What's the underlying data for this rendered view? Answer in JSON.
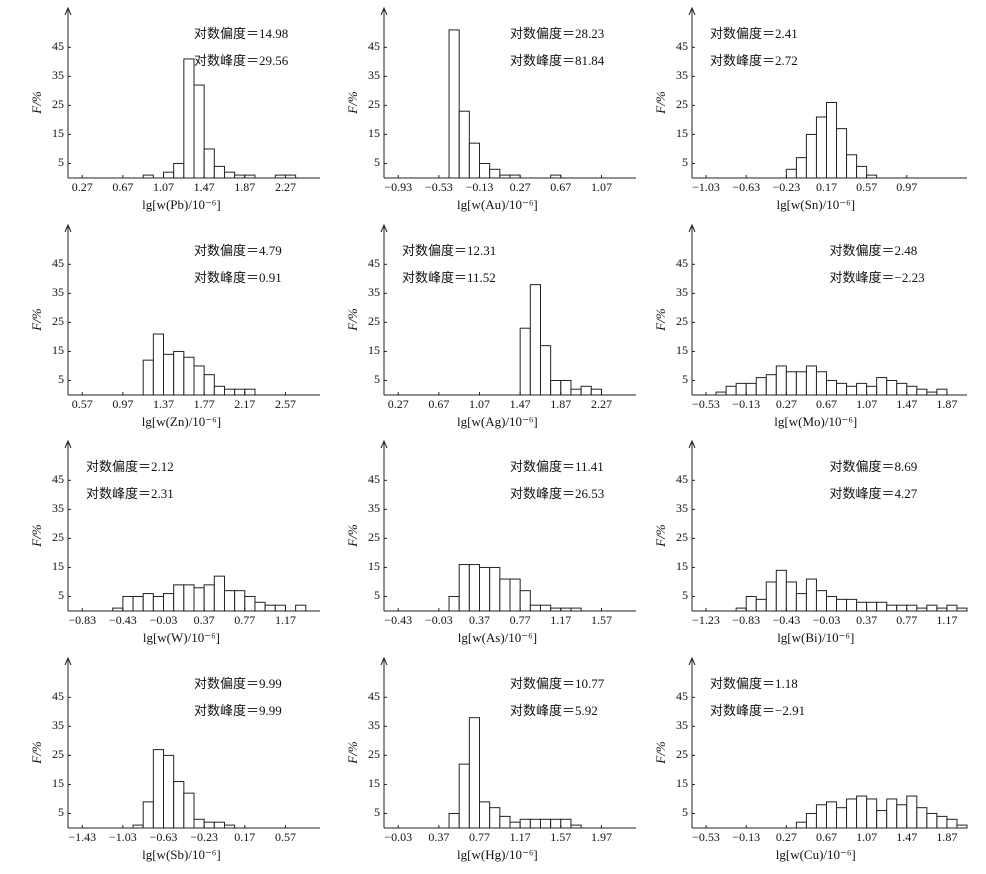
{
  "chart_data": [
    {
      "type": "histogram",
      "xlabel": "lg[w(Pb)/10⁻⁶]",
      "ylabel": "F/%",
      "annotations": [
        "对数偏度＝14.98",
        "对数峰度＝29.56"
      ],
      "bins": [
        0.87,
        0.97,
        1.07,
        1.17,
        1.27,
        1.37,
        1.47,
        1.57,
        1.67,
        1.77,
        1.87,
        1.97,
        2.07,
        2.17,
        2.27,
        2.37
      ],
      "values": [
        1,
        0,
        2,
        5,
        41,
        32,
        10,
        4,
        2,
        1,
        1,
        0,
        0,
        1,
        1
      ],
      "xlim": [
        0.13,
        2.61
      ],
      "xticks": [
        0.27,
        0.67,
        1.07,
        1.47,
        1.87,
        2.27
      ],
      "ylim": [
        0,
        52
      ],
      "yticks": [
        5,
        15,
        25,
        35,
        45
      ]
    },
    {
      "type": "histogram",
      "xlabel": "lg[w(Au)/10⁻⁶]",
      "ylabel": "F/%",
      "annotations": [
        "对数偏度＝28.23",
        "对数峰度＝81.84"
      ],
      "bins": [
        -0.43,
        -0.33,
        -0.23,
        -0.13,
        -0.03,
        0.07,
        0.17,
        0.27,
        0.37,
        0.47,
        0.57,
        0.67
      ],
      "values": [
        51,
        23,
        12,
        5,
        3,
        1,
        1,
        0,
        0,
        0,
        1
      ],
      "xlim": [
        -1.07,
        1.41
      ],
      "xticks": [
        {
          "value": -0.93,
          "label": "−0.93"
        },
        {
          "value": -0.53,
          "label": "−0.53"
        },
        {
          "value": -0.13,
          "label": "−0.13"
        },
        0.27,
        0.67,
        1.07
      ],
      "ylim": [
        0,
        52
      ],
      "yticks": [
        5,
        15,
        25,
        35,
        45
      ]
    },
    {
      "type": "histogram",
      "xlabel": "lg[w(Sn)/10⁻⁶]",
      "ylabel": "F/%",
      "annotations": [
        "对数偏度＝2.41",
        "对数峰度＝2.72"
      ],
      "bins": [
        -0.23,
        -0.13,
        -0.03,
        0.07,
        0.17,
        0.27,
        0.37,
        0.47,
        0.57,
        0.67
      ],
      "values": [
        3,
        7,
        15,
        21,
        26,
        17,
        8,
        4,
        1
      ],
      "xlim": [
        -1.17,
        1.57
      ],
      "xticks": [
        {
          "value": -1.03,
          "label": "−1.03"
        },
        {
          "value": -0.63,
          "label": "−0.63"
        },
        {
          "value": -0.23,
          "label": "−0.23"
        },
        0.17,
        0.57,
        0.97
      ],
      "ylim": [
        0,
        52
      ],
      "yticks": [
        5,
        15,
        25,
        35,
        45
      ]
    },
    {
      "type": "histogram",
      "xlabel": "lg[w(Zn)/10⁻⁶]",
      "ylabel": "F/%",
      "annotations": [
        "对数偏度＝4.79",
        "对数峰度＝0.91"
      ],
      "bins": [
        1.17,
        1.27,
        1.37,
        1.47,
        1.57,
        1.67,
        1.77,
        1.87,
        1.97,
        2.07,
        2.17,
        2.27
      ],
      "values": [
        12,
        21,
        14,
        15,
        13,
        10,
        7,
        3,
        2,
        2,
        2
      ],
      "xlim": [
        0.43,
        2.91
      ],
      "xticks": [
        0.57,
        0.97,
        1.37,
        1.77,
        2.17,
        2.57
      ],
      "ylim": [
        0,
        52
      ],
      "yticks": [
        5,
        15,
        25,
        35,
        45
      ]
    },
    {
      "type": "histogram",
      "xlabel": "lg[w(Ag)/10⁻⁶]",
      "ylabel": "F/%",
      "annotations": [
        "对数偏度＝12.31",
        "对数峰度＝11.52"
      ],
      "bins": [
        1.47,
        1.57,
        1.67,
        1.77,
        1.87,
        1.97,
        2.07,
        2.17,
        2.27
      ],
      "values": [
        23,
        38,
        17,
        5,
        5,
        2,
        3,
        2
      ],
      "xlim": [
        0.13,
        2.61
      ],
      "xticks": [
        0.27,
        0.67,
        1.07,
        1.47,
        1.87,
        2.27
      ],
      "ylim": [
        0,
        52
      ],
      "yticks": [
        5,
        15,
        25,
        35,
        45
      ]
    },
    {
      "type": "histogram",
      "xlabel": "lg[w(Mo)/10⁻⁶]",
      "ylabel": "F/%",
      "annotations": [
        "对数偏度＝2.48",
        "对数峰度＝−2.23"
      ],
      "bins": [
        -0.43,
        -0.33,
        -0.23,
        -0.13,
        -0.03,
        0.07,
        0.17,
        0.27,
        0.37,
        0.47,
        0.57,
        0.67,
        0.77,
        0.87,
        0.97,
        1.07,
        1.17,
        1.27,
        1.37,
        1.47,
        1.57,
        1.67,
        1.77,
        1.87
      ],
      "values": [
        1,
        3,
        4,
        4,
        6,
        7,
        10,
        8,
        8,
        10,
        8,
        5,
        4,
        3,
        4,
        3,
        6,
        5,
        4,
        3,
        2,
        1,
        2
      ],
      "xlim": [
        -0.67,
        2.07
      ],
      "xticks": [
        {
          "value": -0.53,
          "label": "−0.53"
        },
        {
          "value": -0.13,
          "label": "−0.13"
        },
        0.27,
        0.67,
        1.07,
        1.47,
        1.87
      ],
      "ylim": [
        0,
        52
      ],
      "yticks": [
        5,
        15,
        25,
        35,
        45
      ]
    },
    {
      "type": "histogram",
      "xlabel": "lg[w(W)/10⁻⁶]",
      "ylabel": "F/%",
      "annotations": [
        "对数偏度＝2.12",
        "对数峰度＝2.31"
      ],
      "bins": [
        -0.53,
        -0.43,
        -0.33,
        -0.23,
        -0.13,
        -0.03,
        0.07,
        0.17,
        0.27,
        0.37,
        0.47,
        0.57,
        0.67,
        0.77,
        0.87,
        0.97,
        1.07,
        1.17,
        1.27,
        1.37
      ],
      "values": [
        1,
        5,
        5,
        6,
        5,
        6,
        9,
        9,
        8,
        9,
        12,
        7,
        7,
        5,
        3,
        2,
        2,
        0,
        2
      ],
      "xlim": [
        -0.97,
        1.51
      ],
      "xticks": [
        {
          "value": -0.83,
          "label": "−0.83"
        },
        {
          "value": -0.43,
          "label": "−0.43"
        },
        {
          "value": -0.03,
          "label": "−0.03"
        },
        0.37,
        0.77,
        1.17
      ],
      "ylim": [
        0,
        52
      ],
      "yticks": [
        5,
        15,
        25,
        35,
        45
      ]
    },
    {
      "type": "histogram",
      "xlabel": "lg[w(As)/10⁻⁶]",
      "ylabel": "F/%",
      "annotations": [
        "对数偏度＝11.41",
        "对数峰度＝26.53"
      ],
      "bins": [
        0.07,
        0.17,
        0.27,
        0.37,
        0.47,
        0.57,
        0.67,
        0.77,
        0.87,
        0.97,
        1.07,
        1.17,
        1.27,
        1.37
      ],
      "values": [
        5,
        16,
        16,
        15,
        15,
        11,
        11,
        7,
        2,
        2,
        1,
        1,
        1
      ],
      "xlim": [
        -0.57,
        1.91
      ],
      "xticks": [
        {
          "value": -0.43,
          "label": "−0.43"
        },
        {
          "value": -0.03,
          "label": "−0.03"
        },
        0.37,
        0.77,
        1.17,
        1.57
      ],
      "ylim": [
        0,
        52
      ],
      "yticks": [
        5,
        15,
        25,
        35,
        45
      ]
    },
    {
      "type": "histogram",
      "xlabel": "lg[w(Bi)/10⁻⁶]",
      "ylabel": "F/%",
      "annotations": [
        "对数偏度＝8.69",
        "对数峰度＝4.27"
      ],
      "bins": [
        -0.93,
        -0.83,
        -0.73,
        -0.63,
        -0.53,
        -0.43,
        -0.33,
        -0.23,
        -0.13,
        -0.03,
        0.07,
        0.17,
        0.27,
        0.37,
        0.47,
        0.57,
        0.67,
        0.77,
        0.87,
        0.97,
        1.07,
        1.17,
        1.27,
        1.37
      ],
      "values": [
        1,
        5,
        4,
        10,
        14,
        10,
        6,
        11,
        7,
        5,
        4,
        4,
        3,
        3,
        3,
        2,
        2,
        2,
        1,
        2,
        1,
        2,
        1
      ],
      "xlim": [
        -1.37,
        1.37
      ],
      "xticks": [
        {
          "value": -1.23,
          "label": "−1.23"
        },
        {
          "value": -0.83,
          "label": "−0.83"
        },
        {
          "value": -0.43,
          "label": "−0.43"
        },
        {
          "value": -0.03,
          "label": "−0.03"
        },
        0.37,
        0.77,
        1.17
      ],
      "ylim": [
        0,
        52
      ],
      "yticks": [
        5,
        15,
        25,
        35,
        45
      ]
    },
    {
      "type": "histogram",
      "xlabel": "lg[w(Sb)/10⁻⁶]",
      "ylabel": "F/%",
      "annotations": [
        "对数偏度＝9.99",
        "对数峰度＝9.99"
      ],
      "bins": [
        -0.93,
        -0.83,
        -0.73,
        -0.63,
        -0.53,
        -0.43,
        -0.33,
        -0.23,
        -0.13,
        -0.03,
        0.07
      ],
      "values": [
        1,
        9,
        27,
        25,
        16,
        12,
        3,
        2,
        2,
        1
      ],
      "xlim": [
        -1.57,
        0.91
      ],
      "xticks": [
        {
          "value": -1.43,
          "label": "−1.43"
        },
        {
          "value": -1.03,
          "label": "−1.03"
        },
        {
          "value": -0.63,
          "label": "−0.63"
        },
        {
          "value": -0.23,
          "label": "−0.23"
        },
        0.17,
        0.57
      ],
      "ylim": [
        0,
        52
      ],
      "yticks": [
        5,
        15,
        25,
        35,
        45
      ]
    },
    {
      "type": "histogram",
      "xlabel": "lg[w(Hg)/10⁻⁶]",
      "ylabel": "F/%",
      "annotations": [
        "对数偏度＝10.77",
        "对数峰度＝5.92"
      ],
      "bins": [
        0.47,
        0.57,
        0.67,
        0.77,
        0.87,
        0.97,
        1.07,
        1.17,
        1.27,
        1.37,
        1.47,
        1.57,
        1.67,
        1.77
      ],
      "values": [
        5,
        22,
        38,
        9,
        7,
        4,
        2,
        3,
        3,
        3,
        3,
        3,
        1
      ],
      "xlim": [
        -0.17,
        2.31
      ],
      "xticks": [
        {
          "value": -0.03,
          "label": "−0.03"
        },
        0.37,
        0.77,
        1.17,
        1.57,
        1.97
      ],
      "ylim": [
        0,
        52
      ],
      "yticks": [
        5,
        15,
        25,
        35,
        45
      ]
    },
    {
      "type": "histogram",
      "xlabel": "lg[w(Cu)/10⁻⁶]",
      "ylabel": "F/%",
      "annotations": [
        "对数偏度＝1.18",
        "对数峰度＝−2.91"
      ],
      "bins": [
        0.37,
        0.47,
        0.57,
        0.67,
        0.77,
        0.87,
        0.97,
        1.07,
        1.17,
        1.27,
        1.37,
        1.47,
        1.57,
        1.67,
        1.77,
        1.87,
        1.97,
        2.07
      ],
      "values": [
        2,
        5,
        8,
        9,
        7,
        10,
        11,
        10,
        6,
        10,
        8,
        11,
        7,
        5,
        4,
        3,
        1
      ],
      "xlim": [
        -0.67,
        2.07
      ],
      "xticks": [
        {
          "value": -0.53,
          "label": "−0.53"
        },
        {
          "value": -0.13,
          "label": "−0.13"
        },
        0.27,
        0.67,
        1.07,
        1.47,
        1.87
      ],
      "ylim": [
        0,
        52
      ],
      "yticks": [
        5,
        15,
        25,
        35,
        45
      ]
    }
  ]
}
